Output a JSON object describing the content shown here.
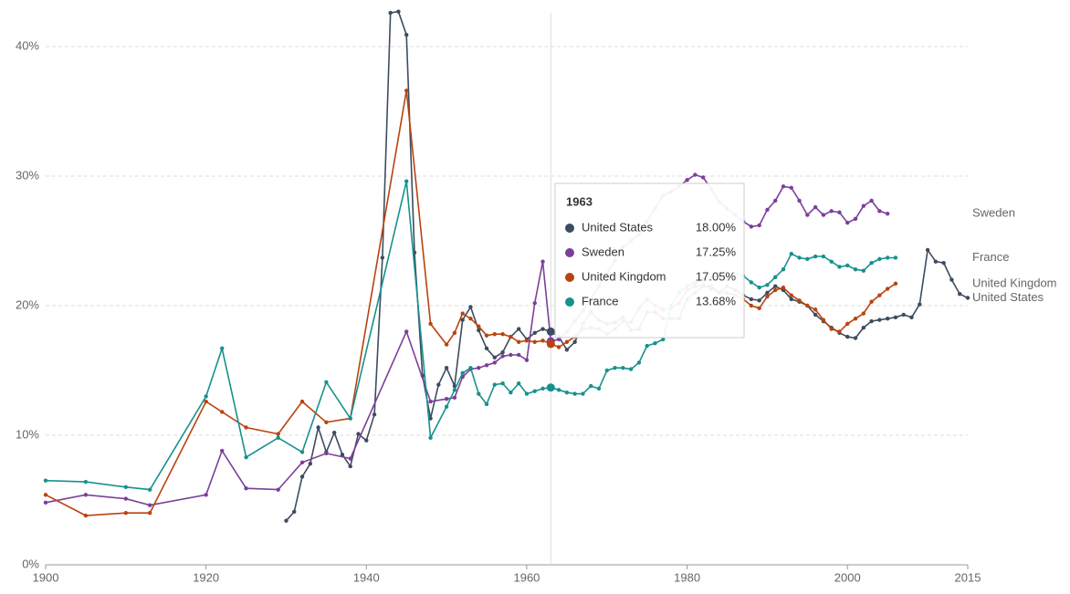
{
  "chart_data": {
    "type": "line",
    "xlim": [
      1900,
      2015
    ],
    "xticks": [
      1900,
      1920,
      1940,
      1960,
      1980,
      2000,
      2015
    ],
    "ylim": [
      0,
      43
    ],
    "yticks": [
      {
        "value": 0,
        "label": "0%"
      },
      {
        "value": 10,
        "label": "10%"
      },
      {
        "value": 20,
        "label": "20%"
      },
      {
        "value": 30,
        "label": "30%"
      },
      {
        "value": 40,
        "label": "40%"
      }
    ],
    "grid": true,
    "series": [
      {
        "name": "United States",
        "color": "#3d4c5f",
        "x": [
          1930,
          1931,
          1932,
          1933,
          1934,
          1935,
          1936,
          1937,
          1938,
          1939,
          1940,
          1941,
          1942,
          1943,
          1944,
          1945,
          1946,
          1947,
          1948,
          1949,
          1950,
          1951,
          1952,
          1953,
          1954,
          1955,
          1956,
          1957,
          1958,
          1959,
          1960,
          1961,
          1962,
          1963,
          1964,
          1965,
          1966,
          1967,
          1968,
          1969,
          1970,
          1971,
          1972,
          1973,
          1974,
          1975,
          1976,
          1977,
          1978,
          1979,
          1980,
          1981,
          1982,
          1983,
          1984,
          1985,
          1986,
          1987,
          1988,
          1989,
          1990,
          1991,
          1992,
          1993,
          1994,
          1995,
          1996,
          1997,
          1998,
          1999,
          2000,
          2001,
          2002,
          2003,
          2004,
          2005,
          2006,
          2007,
          2008,
          2009,
          2010,
          2011,
          2012,
          2013,
          2014,
          2015
        ],
        "values": [
          3.4,
          4.1,
          6.8,
          7.8,
          10.6,
          8.7,
          10.2,
          8.5,
          7.6,
          10.1,
          9.6,
          11.6,
          23.7,
          42.6,
          42.7,
          40.9,
          24.1,
          14.6,
          11.3,
          13.9,
          15.2,
          13.8,
          18.9,
          19.9,
          18.1,
          16.7,
          16.0,
          16.4,
          17.6,
          18.2,
          17.4,
          17.9,
          18.2,
          18.0,
          17.6,
          16.6,
          17.2,
          18.6,
          19.5,
          18.9,
          18.6,
          18.7,
          19.1,
          18.1,
          18.2,
          19.5,
          19.5,
          19.0,
          19.0,
          19.0,
          20.5,
          21.0,
          21.5,
          21.5,
          21.0,
          21.5,
          21.2,
          20.8,
          20.5,
          20.4,
          21.0,
          21.5,
          21.2,
          20.5,
          20.3,
          20.0,
          19.3,
          18.8,
          18.3,
          17.9,
          17.6,
          17.5,
          18.3,
          18.8,
          18.9,
          19.0,
          19.1,
          19.3,
          19.1,
          20.1,
          24.3,
          23.4,
          23.3,
          22.0,
          20.9,
          20.6
        ]
      },
      {
        "name": "Sweden",
        "color": "#7b3f9b",
        "x": [
          1900,
          1905,
          1910,
          1913,
          1920,
          1922,
          1925,
          1929,
          1932,
          1935,
          1938,
          1945,
          1948,
          1950,
          1951,
          1952,
          1953,
          1954,
          1955,
          1956,
          1957,
          1958,
          1959,
          1960,
          1961,
          1962,
          1963,
          1964,
          1965,
          1966,
          1967,
          1968,
          1969,
          1970,
          1971,
          1972,
          1973,
          1974,
          1975,
          1976,
          1977,
          1978,
          1979,
          1980,
          1981,
          1982,
          1983,
          1984,
          1985,
          1986,
          1987,
          1988,
          1989,
          1990,
          1991,
          1992,
          1993,
          1994,
          1995,
          1996,
          1997,
          1998,
          1999,
          2000,
          2001,
          2002,
          2003,
          2004,
          2005
        ],
        "values": [
          4.8,
          5.4,
          5.1,
          4.6,
          5.4,
          8.8,
          5.9,
          5.8,
          7.9,
          8.6,
          8.2,
          18.0,
          12.6,
          12.8,
          12.9,
          14.5,
          15.1,
          15.2,
          15.4,
          15.6,
          16.1,
          16.2,
          16.2,
          15.8,
          20.2,
          23.4,
          17.25,
          17.4,
          18.0,
          18.8,
          19.6,
          20.5,
          21.5,
          22.5,
          23.5,
          24.5,
          25.0,
          25.5,
          26.5,
          27.5,
          28.5,
          28.8,
          29.2,
          29.7,
          30.1,
          29.9,
          29.0,
          28.0,
          27.5,
          27.0,
          26.5,
          26.1,
          26.2,
          27.4,
          28.1,
          29.2,
          29.1,
          28.1,
          27.0,
          27.6,
          27.0,
          27.3,
          27.2,
          26.4,
          26.7,
          27.7,
          28.1,
          27.3,
          27.1
        ]
      },
      {
        "name": "United Kingdom",
        "color": "#b9430f",
        "x": [
          1900,
          1905,
          1910,
          1913,
          1920,
          1922,
          1925,
          1929,
          1932,
          1935,
          1938,
          1945,
          1948,
          1950,
          1951,
          1952,
          1953,
          1954,
          1955,
          1956,
          1957,
          1958,
          1959,
          1960,
          1961,
          1962,
          1963,
          1964,
          1965,
          1966,
          1967,
          1968,
          1969,
          1970,
          1971,
          1972,
          1973,
          1974,
          1975,
          1976,
          1977,
          1978,
          1979,
          1980,
          1981,
          1982,
          1983,
          1984,
          1985,
          1986,
          1987,
          1988,
          1989,
          1990,
          1991,
          1992,
          1993,
          1994,
          1995,
          1996,
          1997,
          1998,
          1999,
          2000,
          2001,
          2002,
          2003,
          2004,
          2005,
          2006
        ],
        "values": [
          5.4,
          3.8,
          4.0,
          4.0,
          12.6,
          11.8,
          10.6,
          10.1,
          12.6,
          11.0,
          11.3,
          36.6,
          18.6,
          17.0,
          17.9,
          19.4,
          19.0,
          18.4,
          17.7,
          17.8,
          17.8,
          17.6,
          17.2,
          17.3,
          17.2,
          17.3,
          17.05,
          16.8,
          17.2,
          17.6,
          18.2,
          18.3,
          18.2,
          17.8,
          18.2,
          18.8,
          18.7,
          19.8,
          20.5,
          20.0,
          19.7,
          19.8,
          20.2,
          21.2,
          21.5,
          21.6,
          21.3,
          21.0,
          21.0,
          20.8,
          20.5,
          20.0,
          19.8,
          20.7,
          21.2,
          21.4,
          20.8,
          20.4,
          20.0,
          19.7,
          18.9,
          18.2,
          18.0,
          18.6,
          19.0,
          19.4,
          20.3,
          20.8,
          21.3,
          21.7
        ]
      },
      {
        "name": "France",
        "color": "#17918d",
        "x": [
          1900,
          1905,
          1910,
          1913,
          1920,
          1922,
          1925,
          1929,
          1932,
          1935,
          1938,
          1945,
          1948,
          1950,
          1951,
          1952,
          1953,
          1954,
          1955,
          1956,
          1957,
          1958,
          1959,
          1960,
          1961,
          1962,
          1963,
          1964,
          1965,
          1966,
          1967,
          1968,
          1969,
          1970,
          1971,
          1972,
          1973,
          1974,
          1975,
          1976,
          1977,
          1978,
          1979,
          1980,
          1981,
          1982,
          1983,
          1984,
          1985,
          1986,
          1987,
          1988,
          1989,
          1990,
          1991,
          1992,
          1993,
          1994,
          1995,
          1996,
          1997,
          1998,
          1999,
          2000,
          2001,
          2002,
          2003,
          2004,
          2005,
          2006
        ],
        "values": [
          6.5,
          6.4,
          6.0,
          5.8,
          13.0,
          16.7,
          8.3,
          9.8,
          8.7,
          14.1,
          11.3,
          29.6,
          9.8,
          12.2,
          13.5,
          14.8,
          15.2,
          13.2,
          12.4,
          13.9,
          14.0,
          13.3,
          14.0,
          13.2,
          13.4,
          13.6,
          13.68,
          13.5,
          13.3,
          13.2,
          13.2,
          13.8,
          13.6,
          15.0,
          15.2,
          15.2,
          15.1,
          15.6,
          16.9,
          17.1,
          17.4,
          20.0,
          21.0,
          21.5,
          21.8,
          22.0,
          22.2,
          22.3,
          22.4,
          22.5,
          22.3,
          21.8,
          21.4,
          21.6,
          22.2,
          22.8,
          24.0,
          23.7,
          23.6,
          23.8,
          23.8,
          23.4,
          23.0,
          23.1,
          22.8,
          22.7,
          23.3,
          23.6,
          23.7,
          23.7
        ]
      }
    ],
    "tooltip": {
      "x": 1963,
      "title": "1963",
      "values": [
        18.0,
        17.25,
        17.05,
        13.68
      ],
      "value_labels": [
        "18.00%",
        "17.25%",
        "17.05%",
        "13.68%"
      ]
    }
  }
}
